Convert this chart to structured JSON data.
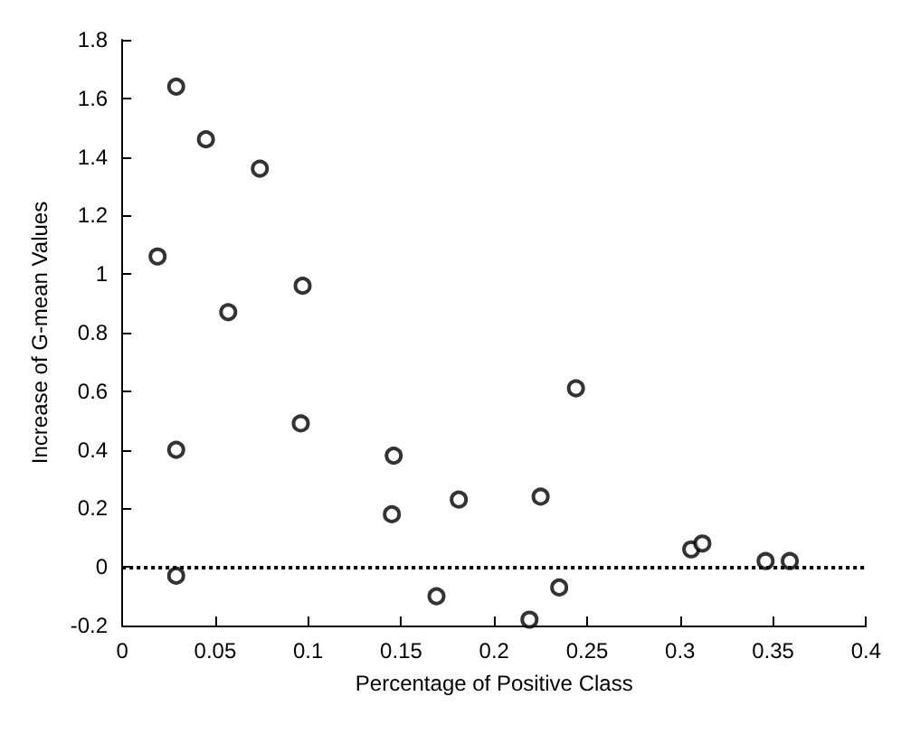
{
  "chart_data": {
    "type": "scatter",
    "xlabel": "Percentage of Positive Class",
    "ylabel": "Increase of G-mean Values",
    "x": [
      0.029,
      0.045,
      0.074,
      0.019,
      0.097,
      0.057,
      0.029,
      0.096,
      0.146,
      0.145,
      0.181,
      0.029,
      0.169,
      0.244,
      0.225,
      0.235,
      0.219,
      0.306,
      0.312,
      0.346,
      0.359
    ],
    "series": [
      {
        "color": "#000000",
        "values": [
          1.64,
          1.46,
          1.36,
          1.06,
          0.96,
          0.87,
          0.4,
          0.49,
          0.38,
          0.18,
          0.23,
          -0.03,
          -0.1,
          0.61,
          0.24,
          -0.07,
          -0.18,
          0.06,
          0.08,
          0.02,
          0.02
        ]
      }
    ],
    "xlim": [
      0,
      0.4
    ],
    "xticks": [
      0,
      0.05,
      0.1,
      0.15,
      0.2,
      0.25,
      0.3,
      0.35,
      0.4
    ],
    "ylim": [
      -0.2,
      1.8
    ],
    "yticks": [
      -0.2,
      0,
      0.2,
      0.4,
      0.6,
      0.8,
      1,
      1.2,
      1.4,
      1.6,
      1.8
    ],
    "ref_lines": [
      {
        "axis": "y",
        "value": 0,
        "line_style": "dotted",
        "color": "#000000"
      }
    ],
    "marker": "circle",
    "grid": false
  }
}
